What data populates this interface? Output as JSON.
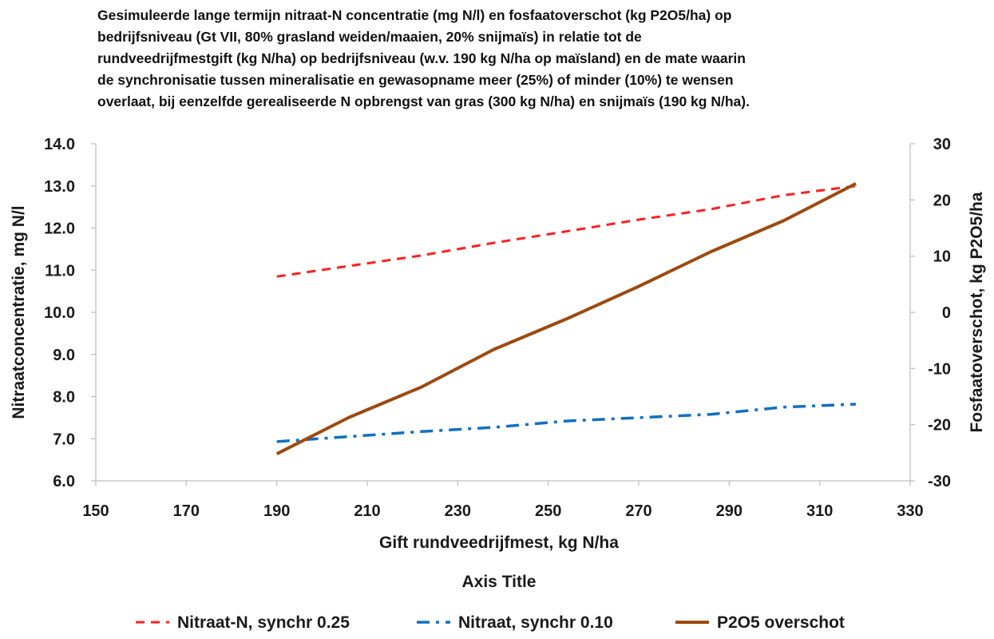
{
  "chart_data": {
    "type": "line",
    "title_lines": [
      "Gesimuleerde lange termijn nitraat-N concentratie (mg N/l) en fosfaatoverschot (kg P2O5/ha) op",
      "bedrijfsniveau (Gt VII, 80% grasland weiden/maaien, 20% snijmaïs) in relatie tot de",
      "rundveedrijfmestgift (kg N/ha) op bedrijfsniveau (w.v. 190 kg N/ha op maïsland) en de mate waarin",
      "de synchronisatie tussen mineralisatie en gewasopname meer (25%) of minder (10%) te wensen",
      "overlaat, bij eenzelfde gerealiseerde N opbrengst van gras (300 kg N/ha) en snijmaïs (190 kg N/ha)."
    ],
    "xlabel": "Gift rundveedrijfmest, kg N/ha",
    "xlabel2": "Axis Title",
    "ylabel": "Nitraatconcentratie, mg N/l",
    "y2label": "Fosfaatoverschot, kg P2O5/ha",
    "xlim": [
      150,
      330
    ],
    "ylim": [
      6.0,
      14.0
    ],
    "y2lim": [
      -30,
      30
    ],
    "xticks": [
      "150",
      "170",
      "190",
      "210",
      "230",
      "250",
      "270",
      "290",
      "310",
      "330"
    ],
    "yticks": [
      "6.0",
      "7.0",
      "8.0",
      "9.0",
      "10.0",
      "11.0",
      "12.0",
      "13.0",
      "14.0"
    ],
    "y2ticks": [
      "-30",
      "-20",
      "-10",
      "0",
      "10",
      "20",
      "30"
    ],
    "grid": false,
    "legend_position": "bottom",
    "series": [
      {
        "name": "Nitraat-N, synchr 0.25",
        "axis": "left",
        "color": "#ff2020",
        "dash": "dash",
        "x": [
          190,
          206,
          222,
          238,
          254,
          270,
          286,
          302,
          318
        ],
        "y": [
          10.85,
          11.1,
          11.35,
          11.65,
          11.92,
          12.2,
          12.45,
          12.78,
          13.0
        ]
      },
      {
        "name": "Nitraat, synchr 0.10",
        "axis": "left",
        "color": "#1070c0",
        "dash": "dashdot",
        "x": [
          190,
          206,
          222,
          238,
          254,
          270,
          286,
          302,
          318
        ],
        "y": [
          6.93,
          7.05,
          7.17,
          7.27,
          7.42,
          7.5,
          7.58,
          7.75,
          7.82
        ]
      },
      {
        "name": "P2O5 overschot",
        "axis": "right",
        "color": "#9c4a10",
        "dash": "solid",
        "x": [
          190,
          206,
          222,
          238,
          254,
          270,
          286,
          302,
          318
        ],
        "y": [
          -25.2,
          -18.7,
          -13.3,
          -6.6,
          -1.2,
          4.6,
          10.8,
          16.3,
          22.9
        ]
      }
    ]
  }
}
